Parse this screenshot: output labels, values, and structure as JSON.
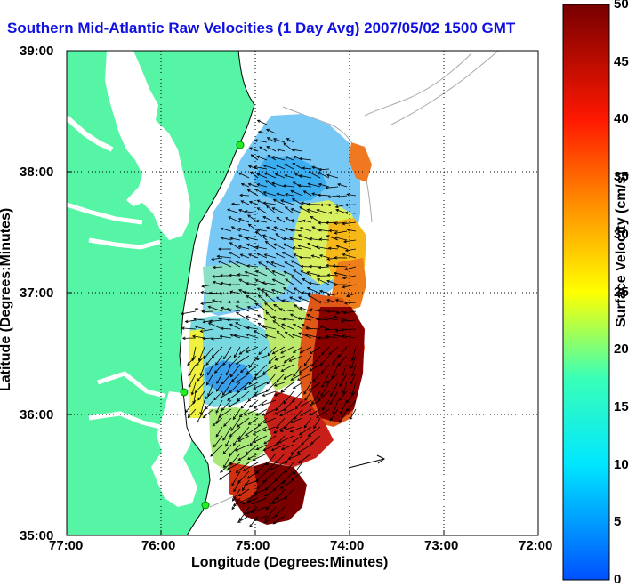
{
  "title": "Southern Mid-Atlantic Raw Velocities (1 Day Avg) 2007/05/02 1500 GMT",
  "xlabel": "Longitude (Degrees:Minutes)",
  "ylabel": "Latitude (Degrees:Minutes)",
  "colorbar": {
    "label": "Surface Velocity (cm/s)",
    "ticks": [
      "0",
      "5",
      "10",
      "15",
      "20",
      "25",
      "30",
      "35",
      "40",
      "45",
      "50"
    ],
    "min": 0,
    "max": 50,
    "unit": "cm/s"
  },
  "map": {
    "lon_ticks": [
      "77:00",
      "76:00",
      "75:00",
      "74:00",
      "73:00",
      "72:00"
    ],
    "lat_ticks": [
      "39:00",
      "38:00",
      "37:00",
      "36:00",
      "35:00"
    ],
    "lon_range": [
      -77,
      -72
    ],
    "lat_range": [
      35,
      39
    ],
    "land_color": "#55f5a5",
    "water_color": "#ffffff",
    "grid": "dotted",
    "station_markers": 3
  }
}
